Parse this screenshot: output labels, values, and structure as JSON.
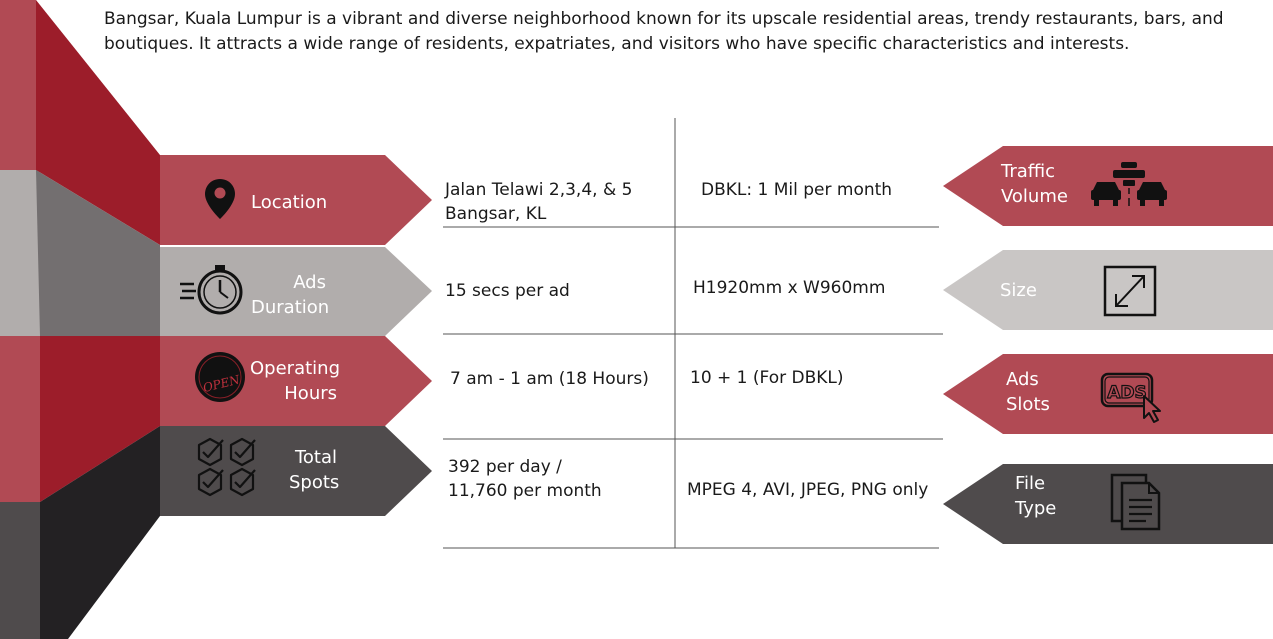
{
  "intro": "Bangsar, Kuala Lumpur is a vibrant and diverse neighborhood known for its upscale residential areas, trendy restaurants, bars, and boutiques. It attracts a wide range of residents, expatriates, and visitors who have specific characteristics and interests.",
  "colors": {
    "red": "#b14a54",
    "grey": "#b1adac",
    "dark": "#4f4b4c",
    "dark_red": "#9c1d2a"
  },
  "left_labels": {
    "location": "Location",
    "ads_duration": [
      "Ads",
      "Duration"
    ],
    "operating_hours": [
      "Operating",
      "Hours"
    ],
    "total_spots": [
      "Total",
      "Spots"
    ]
  },
  "right_labels": {
    "traffic_volume": [
      "Traffic",
      "Volume"
    ],
    "size": "Size",
    "ads_slots": [
      "Ads",
      "Slots"
    ],
    "file_type": [
      "File",
      "Type"
    ]
  },
  "icons": {
    "location": "map-pin-icon",
    "ads_duration": "stopwatch-icon",
    "operating_hours": "open-sign-icon",
    "total_spots": "checkmark-badges-icon",
    "traffic_volume": "traffic-jam-icon",
    "size": "resize-icon",
    "ads_slots": "ads-cursor-icon",
    "file_type": "documents-icon",
    "open_sign_text": "OPEN",
    "ads_text": "ADS"
  },
  "table": {
    "rows": [
      {
        "left": [
          "Jalan Telawi 2,3,4, & 5",
          "Bangsar, KL"
        ],
        "right": "DBKL: 1 Mil per month"
      },
      {
        "left": [
          "15 secs per ad"
        ],
        "right": "H1920mm x W960mm"
      },
      {
        "left": [
          "7 am - 1 am (18 Hours)"
        ],
        "right": "10 + 1 (For DBKL)"
      },
      {
        "left": [
          "392 per day /",
          "11,760 per month"
        ],
        "right": "MPEG 4, AVI, JPEG, PNG only"
      }
    ]
  }
}
